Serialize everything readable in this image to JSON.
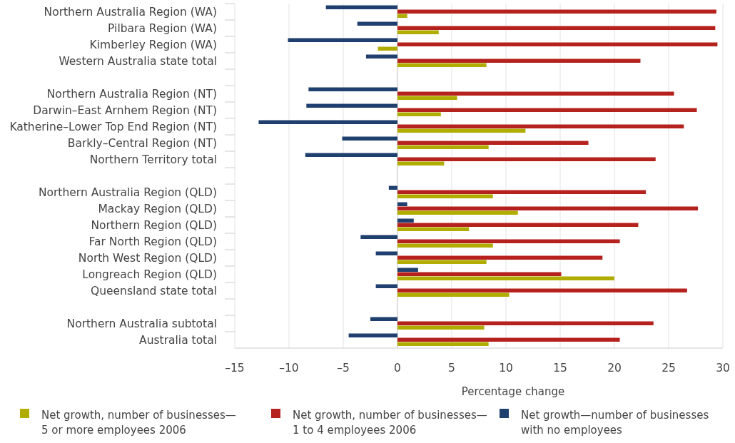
{
  "chart_data": {
    "type": "bar",
    "orientation": "horizontal",
    "xlabel": "Percentage change",
    "categories": [
      "Northern Australia Region (WA)",
      "Pilbara Region (WA)",
      "Kimberley Region (WA)",
      "Western Australia state total",
      null,
      "Northern Australia Region (NT)",
      "Darwin–East Arnhem Region (NT)",
      "Katherine–Lower Top End Region (NT)",
      "Barkly–Central Region (NT)",
      "Northern Territory total",
      null,
      "Northern Australia Region (QLD)",
      "Mackay Region (QLD)",
      "Northern Region (QLD)",
      "Far North Region (QLD)",
      "North West Region (QLD)",
      "Longreach Region (QLD)",
      "Queensland state total",
      null,
      "Northern Australia subtotal",
      "Australia total"
    ],
    "series": [
      {
        "name": "Net growth, number of businesses—\n5 or more employees 2006",
        "color": "#b0ac00",
        "values": [
          0.9,
          3.8,
          -1.8,
          8.2,
          null,
          5.5,
          4.0,
          11.8,
          8.4,
          4.3,
          null,
          8.8,
          11.1,
          6.6,
          8.8,
          8.2,
          20.0,
          10.3,
          null,
          8.0,
          8.4
        ]
      },
      {
        "name": "Net growth, number of businesses—\n1 to 4 employees 2006",
        "color": "#b5221e",
        "values": [
          29.4,
          29.3,
          29.5,
          22.4,
          null,
          25.5,
          27.6,
          26.4,
          17.6,
          23.8,
          null,
          22.9,
          27.7,
          22.2,
          20.5,
          18.9,
          15.1,
          26.7,
          null,
          23.6,
          20.5
        ]
      },
      {
        "name": "Net growth—number of businesses\nwith no employees",
        "color": "#1f3f6e",
        "values": [
          -6.6,
          -3.7,
          -10.1,
          -2.9,
          null,
          -8.2,
          -8.4,
          -12.8,
          -5.1,
          -8.5,
          null,
          -0.8,
          0.9,
          1.5,
          -3.4,
          -2.0,
          1.9,
          -2.0,
          null,
          -2.5,
          -4.5
        ]
      }
    ],
    "xlim": [
      -15,
      30
    ],
    "xticks": [
      {
        "value": -15,
        "label": "–15"
      },
      {
        "value": -10,
        "label": "–10"
      },
      {
        "value": -5,
        "label": "–5"
      },
      0,
      5,
      10,
      15,
      20,
      25,
      30
    ],
    "grid": "x",
    "legend": "bottom"
  }
}
